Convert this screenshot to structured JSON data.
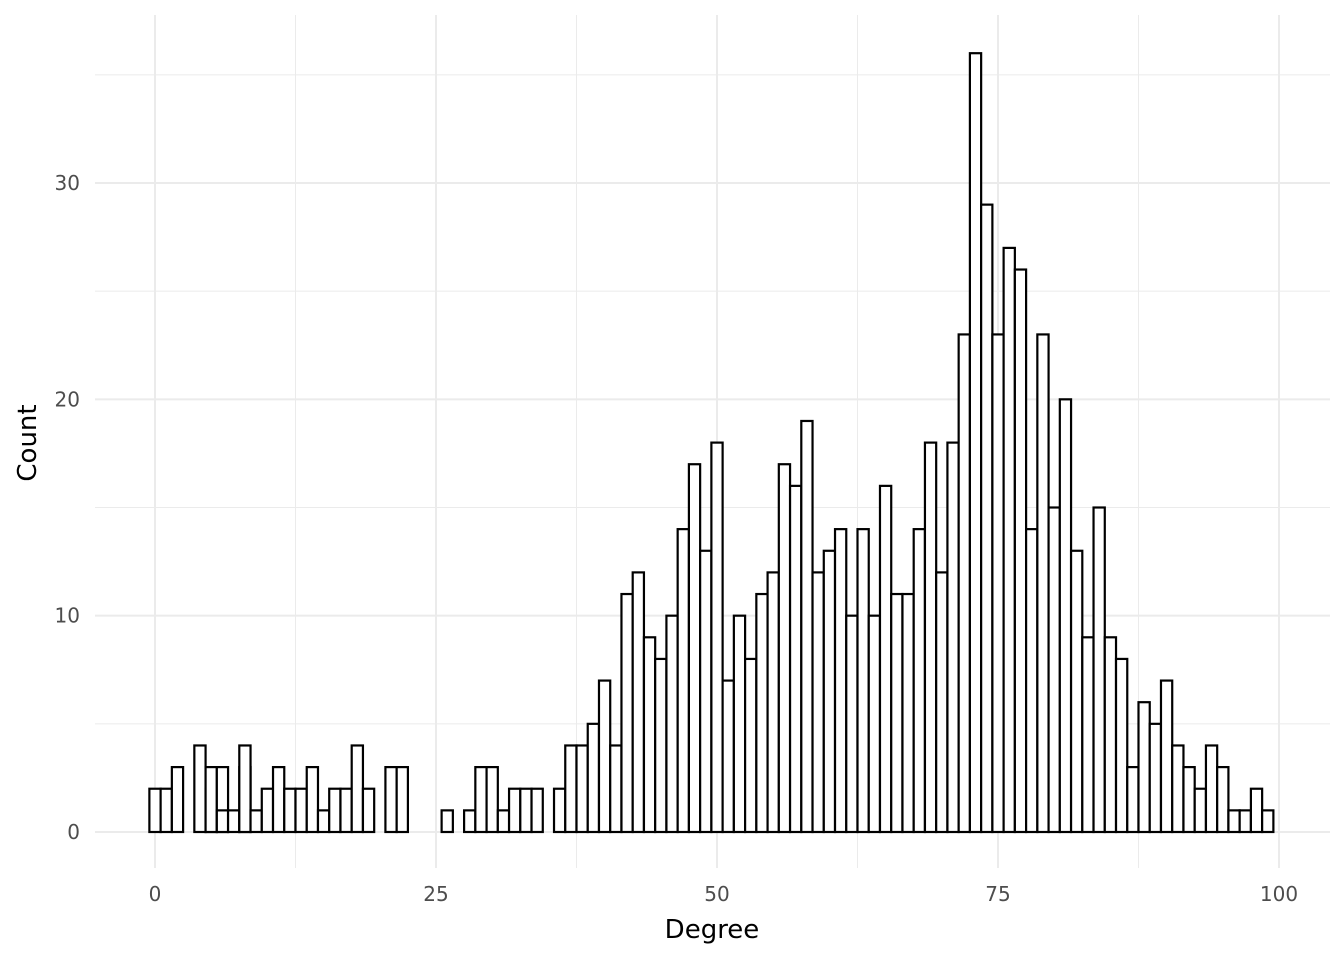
{
  "chart_data": {
    "type": "bar",
    "xlabel": "Degree",
    "ylabel": "Count",
    "xlim": [
      -5,
      103
    ],
    "ylim": [
      -1.5,
      38
    ],
    "x_ticks": [
      0,
      25,
      50,
      75,
      100
    ],
    "x_minor": [
      12.5,
      37.5,
      62.5,
      87.5
    ],
    "y_ticks": [
      0,
      10,
      20,
      30
    ],
    "y_minor": [
      5,
      15,
      25,
      35
    ],
    "grid": true,
    "bin_width": 1,
    "bars": [
      {
        "x": 0,
        "count": 2
      },
      {
        "x": 1,
        "count": 2
      },
      {
        "x": 2,
        "count": 3
      },
      {
        "x": 4,
        "count": 4
      },
      {
        "x": 5,
        "count": 2
      },
      {
        "x": 5,
        "count": 3
      },
      {
        "x": 6,
        "count": 3
      },
      {
        "x": 6,
        "count": 1
      },
      {
        "x": 7,
        "count": 1
      },
      {
        "x": 8,
        "count": 3
      },
      {
        "x": 8,
        "count": 4
      },
      {
        "x": 9,
        "count": 1
      },
      {
        "x": 10,
        "count": 2
      },
      {
        "x": 11,
        "count": 3
      },
      {
        "x": 12,
        "count": 2
      },
      {
        "x": 13,
        "count": 2
      },
      {
        "x": 14,
        "count": 3
      },
      {
        "x": 15,
        "count": 1
      },
      {
        "x": 16,
        "count": 2
      },
      {
        "x": 17,
        "count": 2
      },
      {
        "x": 18,
        "count": 4
      },
      {
        "x": 19,
        "count": 2
      },
      {
        "x": 21,
        "count": 3
      },
      {
        "x": 22,
        "count": 3
      },
      {
        "x": 26,
        "count": 1
      },
      {
        "x": 28,
        "count": 1
      },
      {
        "x": 29,
        "count": 3
      },
      {
        "x": 30,
        "count": 3
      },
      {
        "x": 31,
        "count": 1
      },
      {
        "x": 32,
        "count": 2
      },
      {
        "x": 33,
        "count": 2
      },
      {
        "x": 34,
        "count": 2
      },
      {
        "x": 36,
        "count": 2
      },
      {
        "x": 37,
        "count": 4
      },
      {
        "x": 38,
        "count": 4
      },
      {
        "x": 39,
        "count": 5
      },
      {
        "x": 40,
        "count": 7
      },
      {
        "x": 41,
        "count": 4
      },
      {
        "x": 42,
        "count": 11
      },
      {
        "x": 43,
        "count": 12
      },
      {
        "x": 44,
        "count": 9
      },
      {
        "x": 45,
        "count": 8
      },
      {
        "x": 46,
        "count": 10
      },
      {
        "x": 47,
        "count": 14
      },
      {
        "x": 48,
        "count": 17
      },
      {
        "x": 49,
        "count": 13
      },
      {
        "x": 50,
        "count": 18
      },
      {
        "x": 51,
        "count": 7
      },
      {
        "x": 52,
        "count": 10
      },
      {
        "x": 53,
        "count": 8
      },
      {
        "x": 54,
        "count": 11
      },
      {
        "x": 55,
        "count": 12
      },
      {
        "x": 56,
        "count": 17
      },
      {
        "x": 57,
        "count": 16
      },
      {
        "x": 58,
        "count": 19
      },
      {
        "x": 59,
        "count": 12
      },
      {
        "x": 60,
        "count": 13
      },
      {
        "x": 61,
        "count": 14
      },
      {
        "x": 62,
        "count": 10
      },
      {
        "x": 63,
        "count": 14
      },
      {
        "x": 64,
        "count": 10
      },
      {
        "x": 65,
        "count": 16
      },
      {
        "x": 66,
        "count": 11
      },
      {
        "x": 67,
        "count": 11
      },
      {
        "x": 68,
        "count": 14
      },
      {
        "x": 69,
        "count": 18
      },
      {
        "x": 70,
        "count": 12
      },
      {
        "x": 71,
        "count": 18
      },
      {
        "x": 72,
        "count": 23
      },
      {
        "x": 73,
        "count": 36
      },
      {
        "x": 74,
        "count": 29
      },
      {
        "x": 75,
        "count": 23
      },
      {
        "x": 76,
        "count": 27
      },
      {
        "x": 77,
        "count": 26
      },
      {
        "x": 78,
        "count": 14
      },
      {
        "x": 79,
        "count": 23
      },
      {
        "x": 80,
        "count": 15
      },
      {
        "x": 81,
        "count": 20
      },
      {
        "x": 82,
        "count": 13
      },
      {
        "x": 83,
        "count": 9
      },
      {
        "x": 84,
        "count": 15
      },
      {
        "x": 85,
        "count": 9
      },
      {
        "x": 86,
        "count": 8
      },
      {
        "x": 87,
        "count": 3
      },
      {
        "x": 88,
        "count": 6
      },
      {
        "x": 89,
        "count": 5
      },
      {
        "x": 90,
        "count": 7
      },
      {
        "x": 91,
        "count": 4
      },
      {
        "x": 92,
        "count": 3
      },
      {
        "x": 93,
        "count": 2
      },
      {
        "x": 94,
        "count": 4
      },
      {
        "x": 95,
        "count": 3
      },
      {
        "x": 96,
        "count": 1
      },
      {
        "x": 97,
        "count": 1
      },
      {
        "x": 98,
        "count": 2
      },
      {
        "x": 99,
        "count": 1
      }
    ]
  }
}
